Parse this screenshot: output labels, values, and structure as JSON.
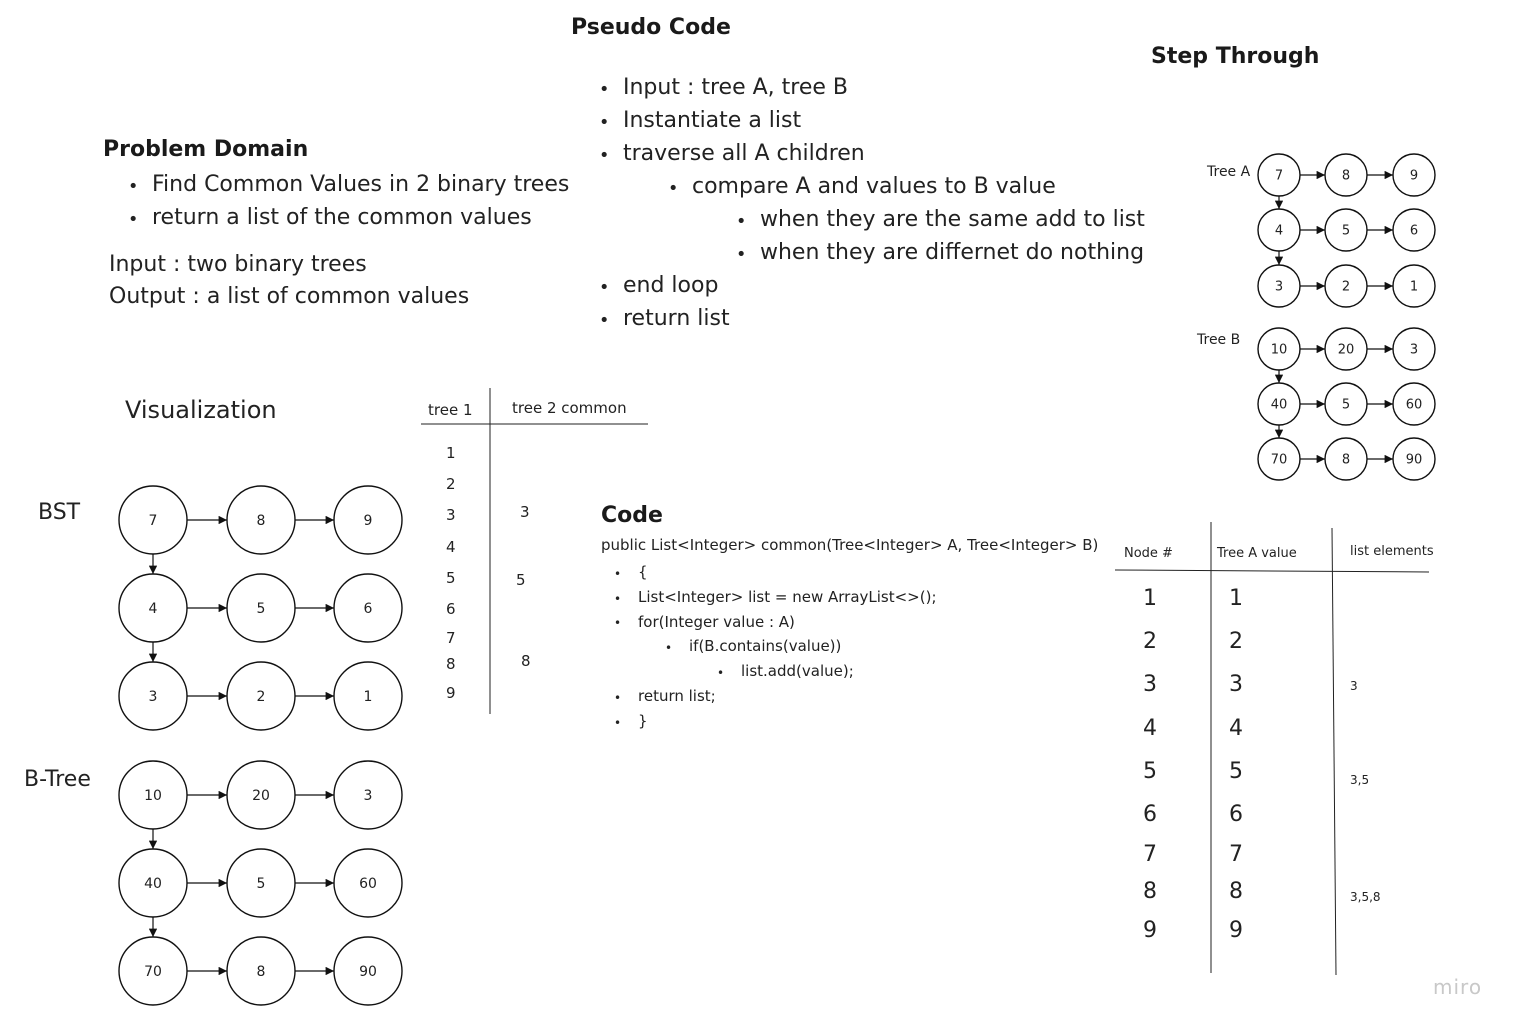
{
  "problem_domain": {
    "title": "Problem Domain",
    "bullets": [
      "Find Common Values in 2 binary trees",
      "return a list of the common values"
    ],
    "input": "Input : two binary trees",
    "output": "Output : a list of common values"
  },
  "pseudo_code": {
    "title": "Pseudo Code",
    "lines": [
      {
        "text": "Input : tree A, tree  B",
        "level": 0
      },
      {
        "text": "Instantiate a list",
        "level": 0
      },
      {
        "text": "traverse all A children",
        "level": 0
      },
      {
        "text": "compare A and values to B value",
        "level": 1
      },
      {
        "text": "when they are the same add to list",
        "level": 2
      },
      {
        "text": "when they are differnet do nothing",
        "level": 2
      },
      {
        "text": "end loop",
        "level": 0
      },
      {
        "text": "return list",
        "level": 0
      }
    ]
  },
  "step_through": {
    "title": "Step Through",
    "tree_a_label": "Tree A",
    "tree_b_label": "Tree B",
    "tree_a": [
      [
        "7",
        "8",
        "9"
      ],
      [
        "4",
        "5",
        "6"
      ],
      [
        "3",
        "2",
        "1"
      ]
    ],
    "tree_b": [
      [
        "10",
        "20",
        "3"
      ],
      [
        "40",
        "5",
        "60"
      ],
      [
        "70",
        "8",
        "90"
      ]
    ]
  },
  "visualization": {
    "title": "Visualization",
    "bst_label": "BST",
    "btree_label": "B-Tree",
    "bst": [
      [
        "7",
        "8",
        "9"
      ],
      [
        "4",
        "5",
        "6"
      ],
      [
        "3",
        "2",
        "1"
      ]
    ],
    "btree": [
      [
        "10",
        "20",
        "3"
      ],
      [
        "40",
        "5",
        "60"
      ],
      [
        "70",
        "8",
        "90"
      ]
    ]
  },
  "tree_table": {
    "headers": [
      "tree 1",
      "tree 2 common"
    ],
    "tree1": [
      "1",
      "2",
      "3",
      "4",
      "5",
      "6",
      "7",
      "8",
      "9"
    ],
    "common": [
      {
        "row": 2,
        "value": "3"
      },
      {
        "row": 4,
        "value": "5"
      },
      {
        "row": 7,
        "value": "8"
      }
    ]
  },
  "code": {
    "title": "Code",
    "signature": "public List<Integer> common(Tree<Integer> A, Tree<Integer> B)",
    "lines": [
      {
        "text": "{",
        "level": 0
      },
      {
        "text": "List<Integer> list = new ArrayList<>();",
        "level": 0
      },
      {
        "text": "for(Integer value : A)",
        "level": 0
      },
      {
        "text": "if(B.contains(value))",
        "level": 1
      },
      {
        "text": "list.add(value);",
        "level": 2
      },
      {
        "text": "return list;",
        "level": 0
      },
      {
        "text": "}",
        "level": 0
      }
    ]
  },
  "step_table": {
    "headers": [
      "Node #",
      "Tree A value",
      "list elements"
    ],
    "node": [
      "1",
      "2",
      "3",
      "4",
      "5",
      "6",
      "7",
      "8",
      "9"
    ],
    "value": [
      "1",
      "2",
      "3",
      "4",
      "5",
      "6",
      "7",
      "8",
      "9"
    ],
    "list": [
      {
        "row": 2,
        "value": "3"
      },
      {
        "row": 4,
        "value": "3,5"
      },
      {
        "row": 7,
        "value": "3,5,8"
      }
    ]
  },
  "watermark": "miro"
}
